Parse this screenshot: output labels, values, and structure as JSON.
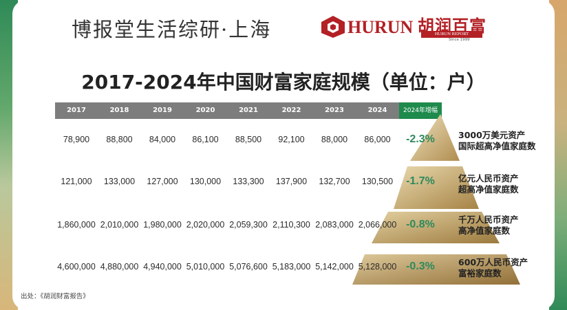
{
  "header": {
    "org_title": "博报堂生活综研·上海",
    "logo_en": "HURUN",
    "logo_cn": "胡润百富",
    "logo_report": "HURUN REPORT",
    "logo_since": "Since 1999"
  },
  "title": "2017-2024年中国财富家庭规模（单位：户）",
  "table": {
    "years": [
      "2017",
      "2018",
      "2019",
      "2020",
      "2021",
      "2022",
      "2023",
      "2024"
    ],
    "growth_header": "2024年增幅",
    "rows": [
      {
        "values": [
          "78,900",
          "88,800",
          "84,000",
          "86,100",
          "88,500",
          "92,100",
          "88,000",
          "86,000"
        ],
        "growth": "-2.3%",
        "label_line1": "3000万美元资产",
        "label_line2": "国际超高净值家庭数"
      },
      {
        "values": [
          "121,000",
          "133,000",
          "127,000",
          "130,000",
          "133,300",
          "137,900",
          "132,700",
          "130,500"
        ],
        "growth": "-1.7%",
        "label_line1": "亿元人民币资产",
        "label_line2": "超高净值家庭数"
      },
      {
        "values": [
          "1,860,000",
          "2,010,000",
          "1,980,000",
          "2,020,000",
          "2,059,300",
          "2,110,300",
          "2,083,000",
          "2,066,000"
        ],
        "growth": "-0.8%",
        "label_line1": "千万人民币资产",
        "label_line2": "高净值家庭数"
      },
      {
        "values": [
          "4,600,000",
          "4,880,000",
          "4,940,000",
          "5,010,000",
          "5,076,600",
          "5,183,000",
          "5,142,000",
          "5,128,000"
        ],
        "growth": "-0.3%",
        "label_line1": "600万人民币资产",
        "label_line2": "富裕家庭数"
      }
    ]
  },
  "source": "出处：《胡润财富报告》",
  "colors": {
    "brand_red": "#b32025",
    "accent_green": "#1e8a4c",
    "header_gray": "#7d7d7d",
    "gold": "#b08d4f"
  }
}
